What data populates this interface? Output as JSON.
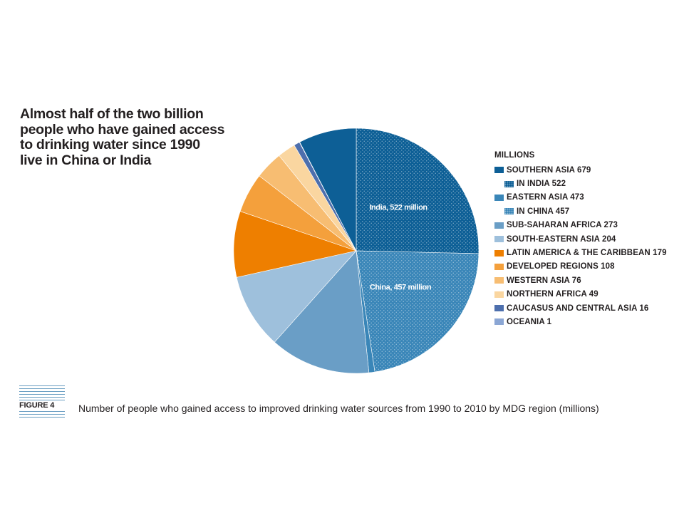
{
  "headline": "Almost half of the two billion\npeople who have gained access\nto drinking water since 1990\nlive in China or India",
  "figure_label": "FIGURE 4",
  "caption": "Number of people who gained access to improved drinking water sources from 1990 to 2010 by MDG region (millions)",
  "chart_data": {
    "type": "pie",
    "legend_title": "MILLIONS",
    "legend_placement": "right",
    "slices": [
      {
        "key": "india",
        "label": "India, 522 million",
        "value": 522,
        "color": "#0d5f96",
        "pattern": "dots"
      },
      {
        "key": "china",
        "label": "China, 457 million",
        "value": 457,
        "color": "#3a86b8",
        "pattern": "dots"
      },
      {
        "key": "eastern_asia_rest",
        "label": "",
        "value": 16,
        "color": "#3a86b8",
        "pattern": "solid"
      },
      {
        "key": "sub_saharan",
        "label": "",
        "value": 273,
        "color": "#6a9ec6",
        "pattern": "solid"
      },
      {
        "key": "south_eastern",
        "label": "",
        "value": 204,
        "color": "#9ec0dc",
        "pattern": "solid"
      },
      {
        "key": "latin_america",
        "label": "",
        "value": 179,
        "color": "#ee7f00",
        "pattern": "solid"
      },
      {
        "key": "developed",
        "label": "",
        "value": 108,
        "color": "#f4a03c",
        "pattern": "solid"
      },
      {
        "key": "western_asia",
        "label": "",
        "value": 76,
        "color": "#f7bd72",
        "pattern": "solid"
      },
      {
        "key": "northern_africa",
        "label": "",
        "value": 49,
        "color": "#fad6a0",
        "pattern": "solid"
      },
      {
        "key": "caucasus",
        "label": "",
        "value": 16,
        "color": "#4d6fad",
        "pattern": "solid"
      },
      {
        "key": "oceania",
        "label": "",
        "value": 1,
        "color": "#8ba6d4",
        "pattern": "solid"
      },
      {
        "key": "southern_asia_rest",
        "label": "",
        "value": 157,
        "color": "#0d5f96",
        "pattern": "solid"
      }
    ],
    "legend": [
      {
        "label": "SOUTHERN ASIA 679",
        "color": "#0d5f96",
        "pattern": "solid",
        "sub": false
      },
      {
        "label": "IN INDIA 522",
        "color": "#0d5f96",
        "pattern": "dots",
        "sub": true
      },
      {
        "label": "EASTERN ASIA 473",
        "color": "#3a86b8",
        "pattern": "solid",
        "sub": false
      },
      {
        "label": "IN CHINA 457",
        "color": "#3a86b8",
        "pattern": "dots",
        "sub": true
      },
      {
        "label": "SUB-SAHARAN AFRICA 273",
        "color": "#6a9ec6",
        "pattern": "solid",
        "sub": false
      },
      {
        "label": "SOUTH-EASTERN ASIA 204",
        "color": "#9ec0dc",
        "pattern": "solid",
        "sub": false
      },
      {
        "label": "LATIN AMERICA & THE CARIBBEAN 179",
        "color": "#ee7f00",
        "pattern": "solid",
        "sub": false
      },
      {
        "label": "DEVELOPED REGIONS 108",
        "color": "#f4a03c",
        "pattern": "solid",
        "sub": false
      },
      {
        "label": "WESTERN ASIA 76",
        "color": "#f7bd72",
        "pattern": "solid",
        "sub": false
      },
      {
        "label": "NORTHERN AFRICA 49",
        "color": "#fad6a0",
        "pattern": "solid",
        "sub": false
      },
      {
        "label": "CAUCASUS AND CENTRAL ASIA 16",
        "color": "#4d6fad",
        "pattern": "solid",
        "sub": false
      },
      {
        "label": "OCEANIA 1",
        "color": "#8ba6d4",
        "pattern": "solid",
        "sub": false
      }
    ]
  }
}
